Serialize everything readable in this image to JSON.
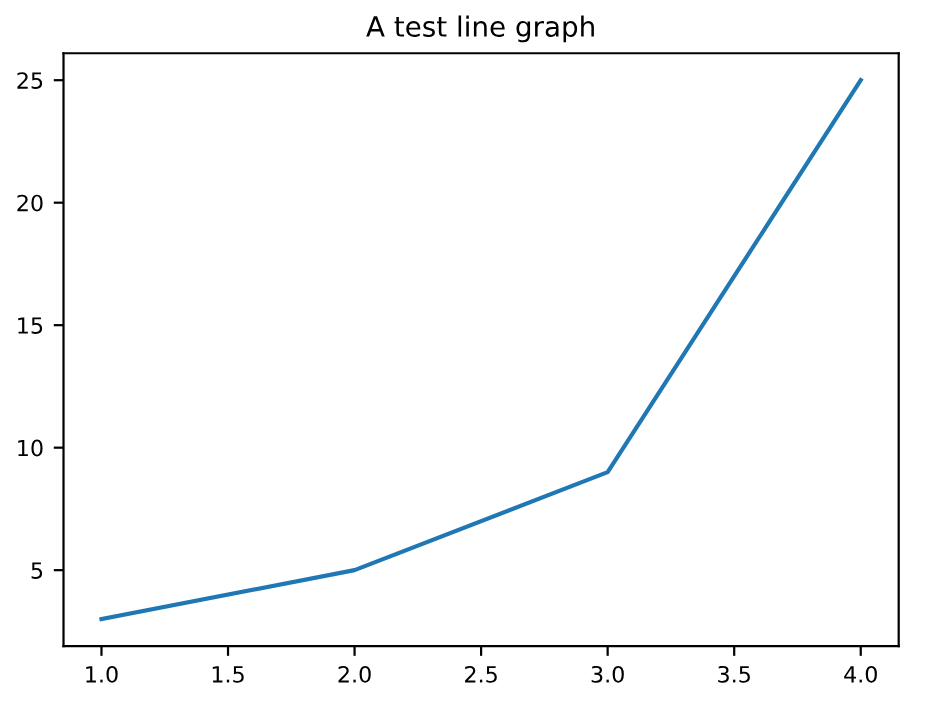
{
  "chart_data": {
    "type": "line",
    "title": "A test line graph",
    "x": [
      1,
      2,
      3,
      4
    ],
    "series": [
      {
        "color": "#1f77b4",
        "values": [
          3,
          5,
          9,
          25
        ]
      }
    ],
    "xlim": [
      0.85,
      4.15
    ],
    "ylim": [
      1.9,
      26.1
    ],
    "xticks": [
      {
        "value": 1,
        "label": "1.0"
      },
      {
        "value": 1.5,
        "label": "1.5"
      },
      {
        "value": 2,
        "label": "2.0"
      },
      {
        "value": 2.5,
        "label": "2.5"
      },
      {
        "value": 3,
        "label": "3.0"
      },
      {
        "value": 3.5,
        "label": "3.5"
      },
      {
        "value": 4,
        "label": "4.0"
      }
    ],
    "yticks": [
      5,
      10,
      15,
      20,
      25
    ],
    "grid": false,
    "marker": "none",
    "line_style": "solid"
  }
}
